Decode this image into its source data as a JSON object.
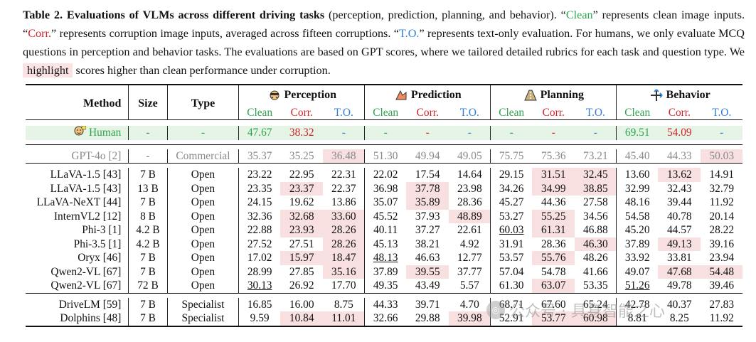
{
  "caption": {
    "label": "Table 2.",
    "title": "Evaluations of VLMs across different driving tasks",
    "p1": " (perception, prediction, planning, and behavior). “",
    "clean_word": "Clean",
    "p2": "” represents clean image inputs. “",
    "corr_word": "Corr.",
    "p3": "” represents corruption image inputs, averaged across fifteen corruptions. “",
    "to_word": "T.O.",
    "p4": "” represents text-only evaluation. For humans, we only evaluate MCQ questions in perception and behavior tasks. The evaluations are based on GPT scores, where we tailored detailed rubrics for each task and question type. We ",
    "highlight_word": "highlight",
    "p5": " scores higher than clean performance under corruption."
  },
  "header": {
    "method": "Method",
    "size": "Size",
    "type": "Type",
    "groups": [
      "Perception",
      "Prediction",
      "Planning",
      "Behavior"
    ],
    "group_icons": [
      "perception-icon",
      "prediction-icon",
      "planning-icon",
      "behavior-icon"
    ],
    "sub": [
      "Clean",
      "Corr.",
      "T.O."
    ]
  },
  "human": {
    "method": "Human",
    "size": "-",
    "type": "-",
    "values": [
      "47.67",
      "38.32",
      "-",
      "-",
      "-",
      "-",
      "-",
      "-",
      "-",
      "69.51",
      "54.09",
      "-"
    ]
  },
  "gpt": {
    "method": "GPT-4o [2]",
    "size": "-",
    "type": "Commercial",
    "values": [
      "35.37",
      "35.25",
      "36.48",
      "51.30",
      "49.94",
      "49.05",
      "75.75",
      "75.36",
      "73.21",
      "45.40",
      "44.33",
      "50.03"
    ],
    "highlight": [
      2,
      11
    ]
  },
  "open_models": [
    {
      "method": "LLaVA-1.5 [43]",
      "size": "7 B",
      "type": "Open",
      "values": [
        "23.22",
        "22.95",
        "22.31",
        "22.02",
        "17.54",
        "14.64",
        "29.15",
        "31.51",
        "32.45",
        "13.60",
        "13.62",
        "14.91"
      ],
      "highlight": [
        7,
        8,
        10
      ],
      "bold": [],
      "underline": []
    },
    {
      "method": "LLaVA-1.5 [43]",
      "size": "13 B",
      "type": "Open",
      "values": [
        "23.35",
        "23.37",
        "22.37",
        "36.98",
        "37.78",
        "23.98",
        "34.26",
        "34.99",
        "38.85",
        "32.99",
        "32.43",
        "32.79"
      ],
      "highlight": [
        1,
        4,
        7,
        8
      ],
      "bold": [],
      "underline": []
    },
    {
      "method": "LLaVA-NeXT [44]",
      "size": "7 B",
      "type": "Open",
      "values": [
        "24.15",
        "19.62",
        "13.86",
        "35.07",
        "35.89",
        "28.36",
        "45.27",
        "44.36",
        "27.58",
        "48.16",
        "39.44",
        "11.92"
      ],
      "highlight": [
        4
      ],
      "bold": [],
      "underline": []
    },
    {
      "method": "InternVL2 [12]",
      "size": "8 B",
      "type": "Open",
      "values": [
        "32.36",
        "32.68",
        "33.60",
        "45.52",
        "37.93",
        "48.89",
        "53.27",
        "55.25",
        "34.56",
        "54.58",
        "40.78",
        "20.14"
      ],
      "highlight": [
        1,
        2,
        5,
        7
      ],
      "bold": [
        0,
        9
      ],
      "underline": []
    },
    {
      "method": "Phi-3 [1]",
      "size": "4.2 B",
      "type": "Open",
      "values": [
        "22.88",
        "23.93",
        "28.26",
        "40.11",
        "37.27",
        "22.61",
        "60.03",
        "61.31",
        "46.88",
        "45.20",
        "44.57",
        "28.22"
      ],
      "highlight": [
        1,
        2,
        7
      ],
      "bold": [],
      "underline": [
        6
      ]
    },
    {
      "method": "Phi-3.5 [1]",
      "size": "4.2 B",
      "type": "Open",
      "values": [
        "27.52",
        "27.51",
        "28.26",
        "45.13",
        "38.21",
        "4.92",
        "31.91",
        "28.36",
        "46.30",
        "37.89",
        "49.13",
        "39.16"
      ],
      "highlight": [
        2,
        8,
        10
      ],
      "bold": [],
      "underline": []
    },
    {
      "method": "Oryx [46]",
      "size": "7 B",
      "type": "Open",
      "values": [
        "17.02",
        "15.97",
        "18.47",
        "48.13",
        "46.63",
        "12.77",
        "53.57",
        "55.76",
        "48.26",
        "33.92",
        "33.81",
        "23.94"
      ],
      "highlight": [
        1,
        2,
        7
      ],
      "bold": [],
      "underline": [
        3
      ]
    },
    {
      "method": "Qwen2-VL [67]",
      "size": "7 B",
      "type": "Open",
      "values": [
        "28.99",
        "27.85",
        "35.16",
        "37.89",
        "39.55",
        "37.77",
        "57.04",
        "54.78",
        "41.66",
        "49.07",
        "47.68",
        "54.48"
      ],
      "highlight": [
        2,
        4,
        10,
        11
      ],
      "bold": [],
      "underline": []
    },
    {
      "method": "Qwen2-VL [67]",
      "size": "72 B",
      "type": "Open",
      "values": [
        "30.13",
        "26.92",
        "17.70",
        "49.35",
        "43.49",
        "5.57",
        "61.30",
        "63.07",
        "53.35",
        "51.26",
        "49.78",
        "39.46"
      ],
      "highlight": [
        7
      ],
      "bold": [
        3,
        6
      ],
      "underline": [
        0,
        9
      ]
    }
  ],
  "specialist_models": [
    {
      "method": "DriveLM [59]",
      "size": "7 B",
      "type": "Specialist",
      "values": [
        "16.85",
        "16.00",
        "8.75",
        "44.33",
        "39.71",
        "4.70",
        "68.71",
        "67.60",
        "65.24",
        "42.78",
        "40.37",
        "27.83"
      ],
      "highlight": [],
      "bold": [
        0,
        3,
        6,
        9
      ],
      "underline": []
    },
    {
      "method": "Dolphins [48]",
      "size": "7 B",
      "type": "Specialist",
      "values": [
        "9.59",
        "10.84",
        "11.01",
        "32.66",
        "29.88",
        "39.98",
        "52.91",
        "53.77",
        "60.98",
        "8.81",
        "8.25",
        "11.92"
      ],
      "highlight": [
        1,
        2,
        5,
        7,
        8
      ],
      "bold": [],
      "underline": []
    }
  ],
  "watermark": "公众号 · 具身智能之心",
  "colors": {
    "clean": "#2ea44f",
    "corr": "#d4212b",
    "to": "#2f7fd6",
    "highlight": "#f8dfe0",
    "human_row": "#e6f4e6"
  }
}
